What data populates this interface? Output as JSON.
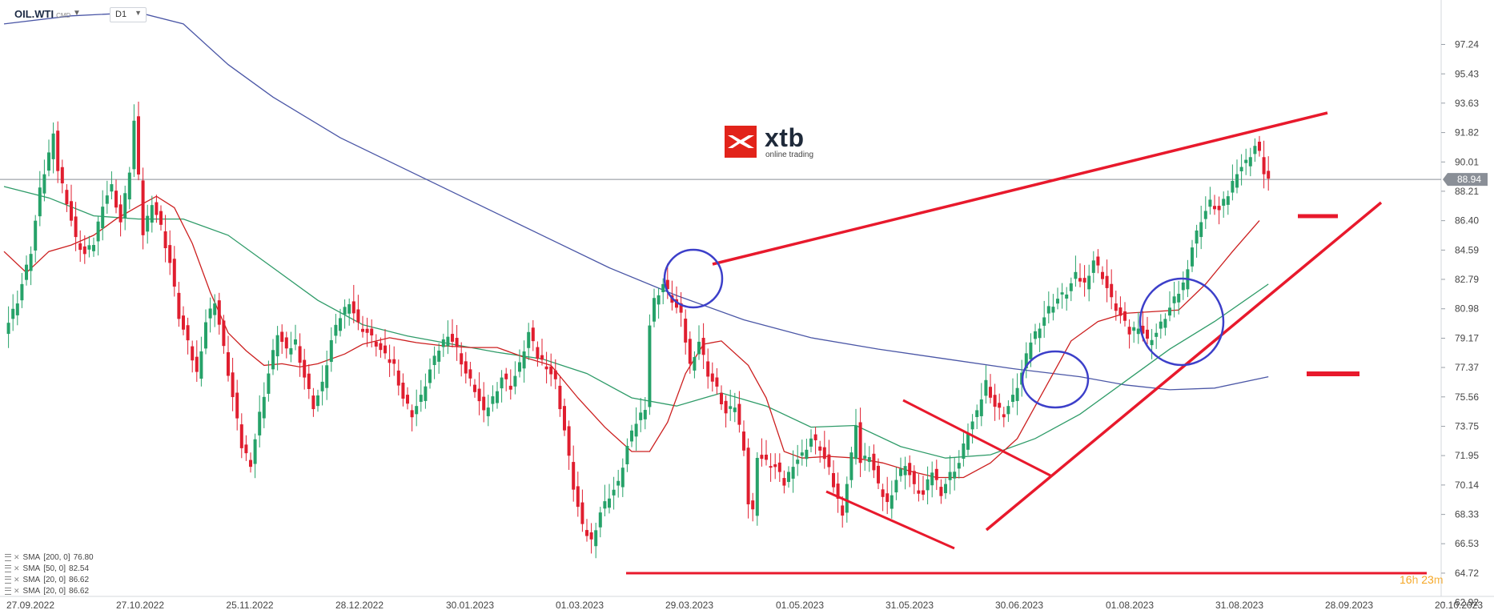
{
  "header": {
    "symbol": "OIL.WTI",
    "symbol_suffix": "CMD",
    "timeframe": "D1"
  },
  "logo": {
    "brand": "xtb",
    "tagline": "online trading"
  },
  "countdown": {
    "hours": "16",
    "h_unit": "h",
    "minutes": "23",
    "m_unit": "m"
  },
  "indicators": [
    {
      "label": "SMA",
      "params": "[200, 0]",
      "value": "76.80"
    },
    {
      "label": "SMA",
      "params": "[50, 0]",
      "value": "82.54"
    },
    {
      "label": "SMA",
      "params": "[20, 0]",
      "value": "86.62"
    },
    {
      "label": "SMA",
      "params": "[20, 0]",
      "value": "86.62"
    }
  ],
  "chart_data": {
    "type": "candlestick",
    "symbol": "OIL.WTI",
    "timeframe": "D1",
    "last_price": 88.94,
    "y_ticks": [
      97.24,
      95.43,
      93.63,
      91.82,
      90.01,
      88.21,
      86.4,
      84.59,
      82.79,
      80.98,
      79.17,
      77.37,
      75.56,
      73.75,
      71.95,
      70.14,
      68.33,
      66.53,
      64.72,
      62.92
    ],
    "y_tick_labels": [
      "97.24",
      "95.43",
      "93.63",
      "91.82",
      "90.01",
      "88.21",
      "86.40",
      "84.59",
      "82.79",
      "80.98",
      "79.17",
      "77.37",
      "75.56",
      "73.75",
      "71.95",
      "70.14",
      "68.33",
      "66.53",
      "64.72",
      "62.92"
    ],
    "ylim": [
      62.2,
      99.2
    ],
    "x_ticks": [
      "27.09.2022",
      "27.10.2022",
      "25.11.2022",
      "28.12.2022",
      "30.01.2023",
      "01.03.2023",
      "29.03.2023",
      "01.05.2023",
      "31.05.2023",
      "30.06.2023",
      "01.08.2023",
      "31.08.2023",
      "28.09.2023",
      "20.10.2023"
    ],
    "price_path": [
      [
        0,
        79.5
      ],
      [
        3,
        81.5
      ],
      [
        6,
        84.5
      ],
      [
        8,
        88.2
      ],
      [
        10,
        90.5
      ],
      [
        11,
        92.0
      ],
      [
        12,
        89.5
      ],
      [
        14,
        87.6
      ],
      [
        16,
        85.2
      ],
      [
        18,
        84.3
      ],
      [
        20,
        85.0
      ],
      [
        22,
        87.5
      ],
      [
        24,
        88.5
      ],
      [
        26,
        86.3
      ],
      [
        28,
        89.5
      ],
      [
        29,
        92.5
      ],
      [
        30,
        89.0
      ],
      [
        31,
        85.6
      ],
      [
        33,
        87.6
      ],
      [
        35,
        86.0
      ],
      [
        37,
        83.8
      ],
      [
        39,
        80.5
      ],
      [
        41,
        78.8
      ],
      [
        43,
        77.0
      ],
      [
        45,
        80.2
      ],
      [
        47,
        81.5
      ],
      [
        49,
        78.5
      ],
      [
        51,
        75.5
      ],
      [
        53,
        72.5
      ],
      [
        55,
        71.5
      ],
      [
        57,
        74.5
      ],
      [
        59,
        77.0
      ],
      [
        61,
        79.5
      ],
      [
        63,
        78.3
      ],
      [
        65,
        79.0
      ],
      [
        67,
        76.8
      ],
      [
        69,
        75.0
      ],
      [
        71,
        76.3
      ],
      [
        73,
        79.0
      ],
      [
        75,
        80.5
      ],
      [
        77,
        81.5
      ],
      [
        79,
        80.0
      ],
      [
        81,
        79.5
      ],
      [
        83,
        78.8
      ],
      [
        85,
        78.0
      ],
      [
        87,
        77.5
      ],
      [
        89,
        75.5
      ],
      [
        91,
        74.5
      ],
      [
        93,
        75.5
      ],
      [
        95,
        77.2
      ],
      [
        97,
        78.5
      ],
      [
        99,
        79.5
      ],
      [
        101,
        78.5
      ],
      [
        103,
        77.0
      ],
      [
        105,
        76.0
      ],
      [
        107,
        74.5
      ],
      [
        109,
        75.5
      ],
      [
        111,
        76.8
      ],
      [
        113,
        76.2
      ],
      [
        115,
        77.5
      ],
      [
        117,
        79.5
      ],
      [
        119,
        78.0
      ],
      [
        121,
        77.5
      ],
      [
        123,
        76.5
      ],
      [
        125,
        73.5
      ],
      [
        127,
        70.0
      ],
      [
        129,
        67.5
      ],
      [
        131,
        66.7
      ],
      [
        133,
        68.5
      ],
      [
        135,
        69.5
      ],
      [
        137,
        70.2
      ],
      [
        139,
        72.5
      ],
      [
        141,
        74.0
      ],
      [
        143,
        75.0
      ],
      [
        144,
        80.0
      ],
      [
        145,
        81.5
      ],
      [
        147,
        82.5
      ],
      [
        149,
        81.5
      ],
      [
        151,
        80.5
      ],
      [
        153,
        77.5
      ],
      [
        155,
        79.0
      ],
      [
        157,
        77.0
      ],
      [
        159,
        76.0
      ],
      [
        161,
        74.5
      ],
      [
        163,
        75.0
      ],
      [
        165,
        72.5
      ],
      [
        166,
        69.0
      ],
      [
        167,
        68.5
      ],
      [
        168,
        72.0
      ],
      [
        170,
        71.5
      ],
      [
        172,
        71.2
      ],
      [
        174,
        70.2
      ],
      [
        176,
        71.5
      ],
      [
        178,
        72.0
      ],
      [
        180,
        73.0
      ],
      [
        182,
        72.4
      ],
      [
        184,
        71.0
      ],
      [
        186,
        69.2
      ],
      [
        187,
        68.5
      ],
      [
        189,
        72.0
      ],
      [
        190,
        74.0
      ],
      [
        191,
        71.5
      ],
      [
        193,
        72.0
      ],
      [
        195,
        70.0
      ],
      [
        197,
        69.0
      ],
      [
        199,
        70.5
      ],
      [
        201,
        71.5
      ],
      [
        203,
        70.0
      ],
      [
        205,
        69.5
      ],
      [
        207,
        71.0
      ],
      [
        209,
        69.7
      ],
      [
        211,
        70.8
      ],
      [
        213,
        71.5
      ],
      [
        215,
        73.5
      ],
      [
        217,
        74.5
      ],
      [
        219,
        76.5
      ],
      [
        221,
        75.0
      ],
      [
        223,
        74.5
      ],
      [
        225,
        75.5
      ],
      [
        227,
        77.0
      ],
      [
        229,
        79.0
      ],
      [
        231,
        80.0
      ],
      [
        233,
        81.0
      ],
      [
        235,
        81.6
      ],
      [
        237,
        82.0
      ],
      [
        239,
        83.0
      ],
      [
        241,
        82.5
      ],
      [
        243,
        84.0
      ],
      [
        245,
        83.0
      ],
      [
        247,
        81.5
      ],
      [
        249,
        80.5
      ],
      [
        251,
        79.5
      ],
      [
        253,
        80.0
      ],
      [
        255,
        79.0
      ],
      [
        257,
        79.5
      ],
      [
        259,
        80.5
      ],
      [
        261,
        81.5
      ],
      [
        263,
        82.5
      ],
      [
        265,
        84.8
      ],
      [
        267,
        86.5
      ],
      [
        269,
        87.5
      ],
      [
        271,
        87.0
      ],
      [
        273,
        88.0
      ],
      [
        275,
        89.5
      ],
      [
        277,
        90.0
      ],
      [
        279,
        91.0
      ],
      [
        280,
        90.5
      ],
      [
        281,
        89.4
      ],
      [
        282,
        88.94
      ]
    ],
    "series": [
      {
        "name": "SMA [200, 0]",
        "color": "#4a56a6",
        "points": [
          [
            0,
            98.5
          ],
          [
            15,
            99.0
          ],
          [
            30,
            99.2
          ],
          [
            40,
            98.5
          ],
          [
            50,
            96.0
          ],
          [
            60,
            94.0
          ],
          [
            75,
            91.5
          ],
          [
            90,
            89.5
          ],
          [
            105,
            87.5
          ],
          [
            120,
            85.5
          ],
          [
            135,
            83.5
          ],
          [
            150,
            81.8
          ],
          [
            165,
            80.3
          ],
          [
            180,
            79.2
          ],
          [
            195,
            78.5
          ],
          [
            210,
            77.9
          ],
          [
            225,
            77.3
          ],
          [
            240,
            76.8
          ],
          [
            250,
            76.3
          ],
          [
            260,
            76.0
          ],
          [
            270,
            76.1
          ],
          [
            282,
            76.8
          ]
        ]
      },
      {
        "name": "SMA [50, 0]",
        "color": "#2e9b68",
        "points": [
          [
            0,
            88.5
          ],
          [
            10,
            87.8
          ],
          [
            20,
            86.7
          ],
          [
            30,
            86.5
          ],
          [
            40,
            86.5
          ],
          [
            50,
            85.5
          ],
          [
            60,
            83.5
          ],
          [
            70,
            81.5
          ],
          [
            80,
            80.0
          ],
          [
            90,
            79.3
          ],
          [
            100,
            78.8
          ],
          [
            110,
            78.3
          ],
          [
            120,
            77.9
          ],
          [
            130,
            77.0
          ],
          [
            140,
            75.5
          ],
          [
            150,
            75.0
          ],
          [
            160,
            75.8
          ],
          [
            170,
            75.0
          ],
          [
            180,
            73.7
          ],
          [
            190,
            73.8
          ],
          [
            200,
            72.5
          ],
          [
            210,
            71.8
          ],
          [
            220,
            72.0
          ],
          [
            230,
            73.0
          ],
          [
            240,
            74.5
          ],
          [
            250,
            76.5
          ],
          [
            260,
            78.5
          ],
          [
            270,
            80.2
          ],
          [
            282,
            82.5
          ]
        ]
      },
      {
        "name": "SMA [20, 0]",
        "color": "#cc1f1f",
        "points": [
          [
            0,
            84.5
          ],
          [
            5,
            83.2
          ],
          [
            10,
            84.5
          ],
          [
            15,
            84.9
          ],
          [
            20,
            85.5
          ],
          [
            25,
            86.5
          ],
          [
            30,
            87.3
          ],
          [
            34,
            87.9
          ],
          [
            38,
            87.2
          ],
          [
            42,
            85.0
          ],
          [
            46,
            82.0
          ],
          [
            50,
            79.5
          ],
          [
            54,
            78.4
          ],
          [
            58,
            77.5
          ],
          [
            62,
            77.6
          ],
          [
            66,
            77.4
          ],
          [
            70,
            77.6
          ],
          [
            76,
            78.2
          ],
          [
            80,
            78.8
          ],
          [
            86,
            79.2
          ],
          [
            92,
            78.9
          ],
          [
            98,
            78.7
          ],
          [
            104,
            78.6
          ],
          [
            110,
            78.6
          ],
          [
            116,
            78.0
          ],
          [
            122,
            77.5
          ],
          [
            128,
            75.5
          ],
          [
            134,
            73.7
          ],
          [
            140,
            72.2
          ],
          [
            144,
            72.2
          ],
          [
            148,
            74.0
          ],
          [
            152,
            77.0
          ],
          [
            156,
            78.8
          ],
          [
            160,
            79.0
          ],
          [
            166,
            77.5
          ],
          [
            170,
            75.5
          ],
          [
            174,
            72.2
          ],
          [
            178,
            71.8
          ],
          [
            184,
            71.9
          ],
          [
            190,
            71.8
          ],
          [
            196,
            71.5
          ],
          [
            202,
            71.0
          ],
          [
            208,
            70.6
          ],
          [
            214,
            70.6
          ],
          [
            220,
            71.5
          ],
          [
            226,
            73.0
          ],
          [
            232,
            76.0
          ],
          [
            238,
            79.0
          ],
          [
            244,
            80.2
          ],
          [
            250,
            80.7
          ],
          [
            256,
            80.8
          ],
          [
            262,
            80.9
          ],
          [
            268,
            82.5
          ],
          [
            274,
            84.5
          ],
          [
            280,
            86.4
          ]
        ]
      }
    ],
    "last_price_label": "88.94",
    "grid": false,
    "legend_position": "bottom-left"
  }
}
